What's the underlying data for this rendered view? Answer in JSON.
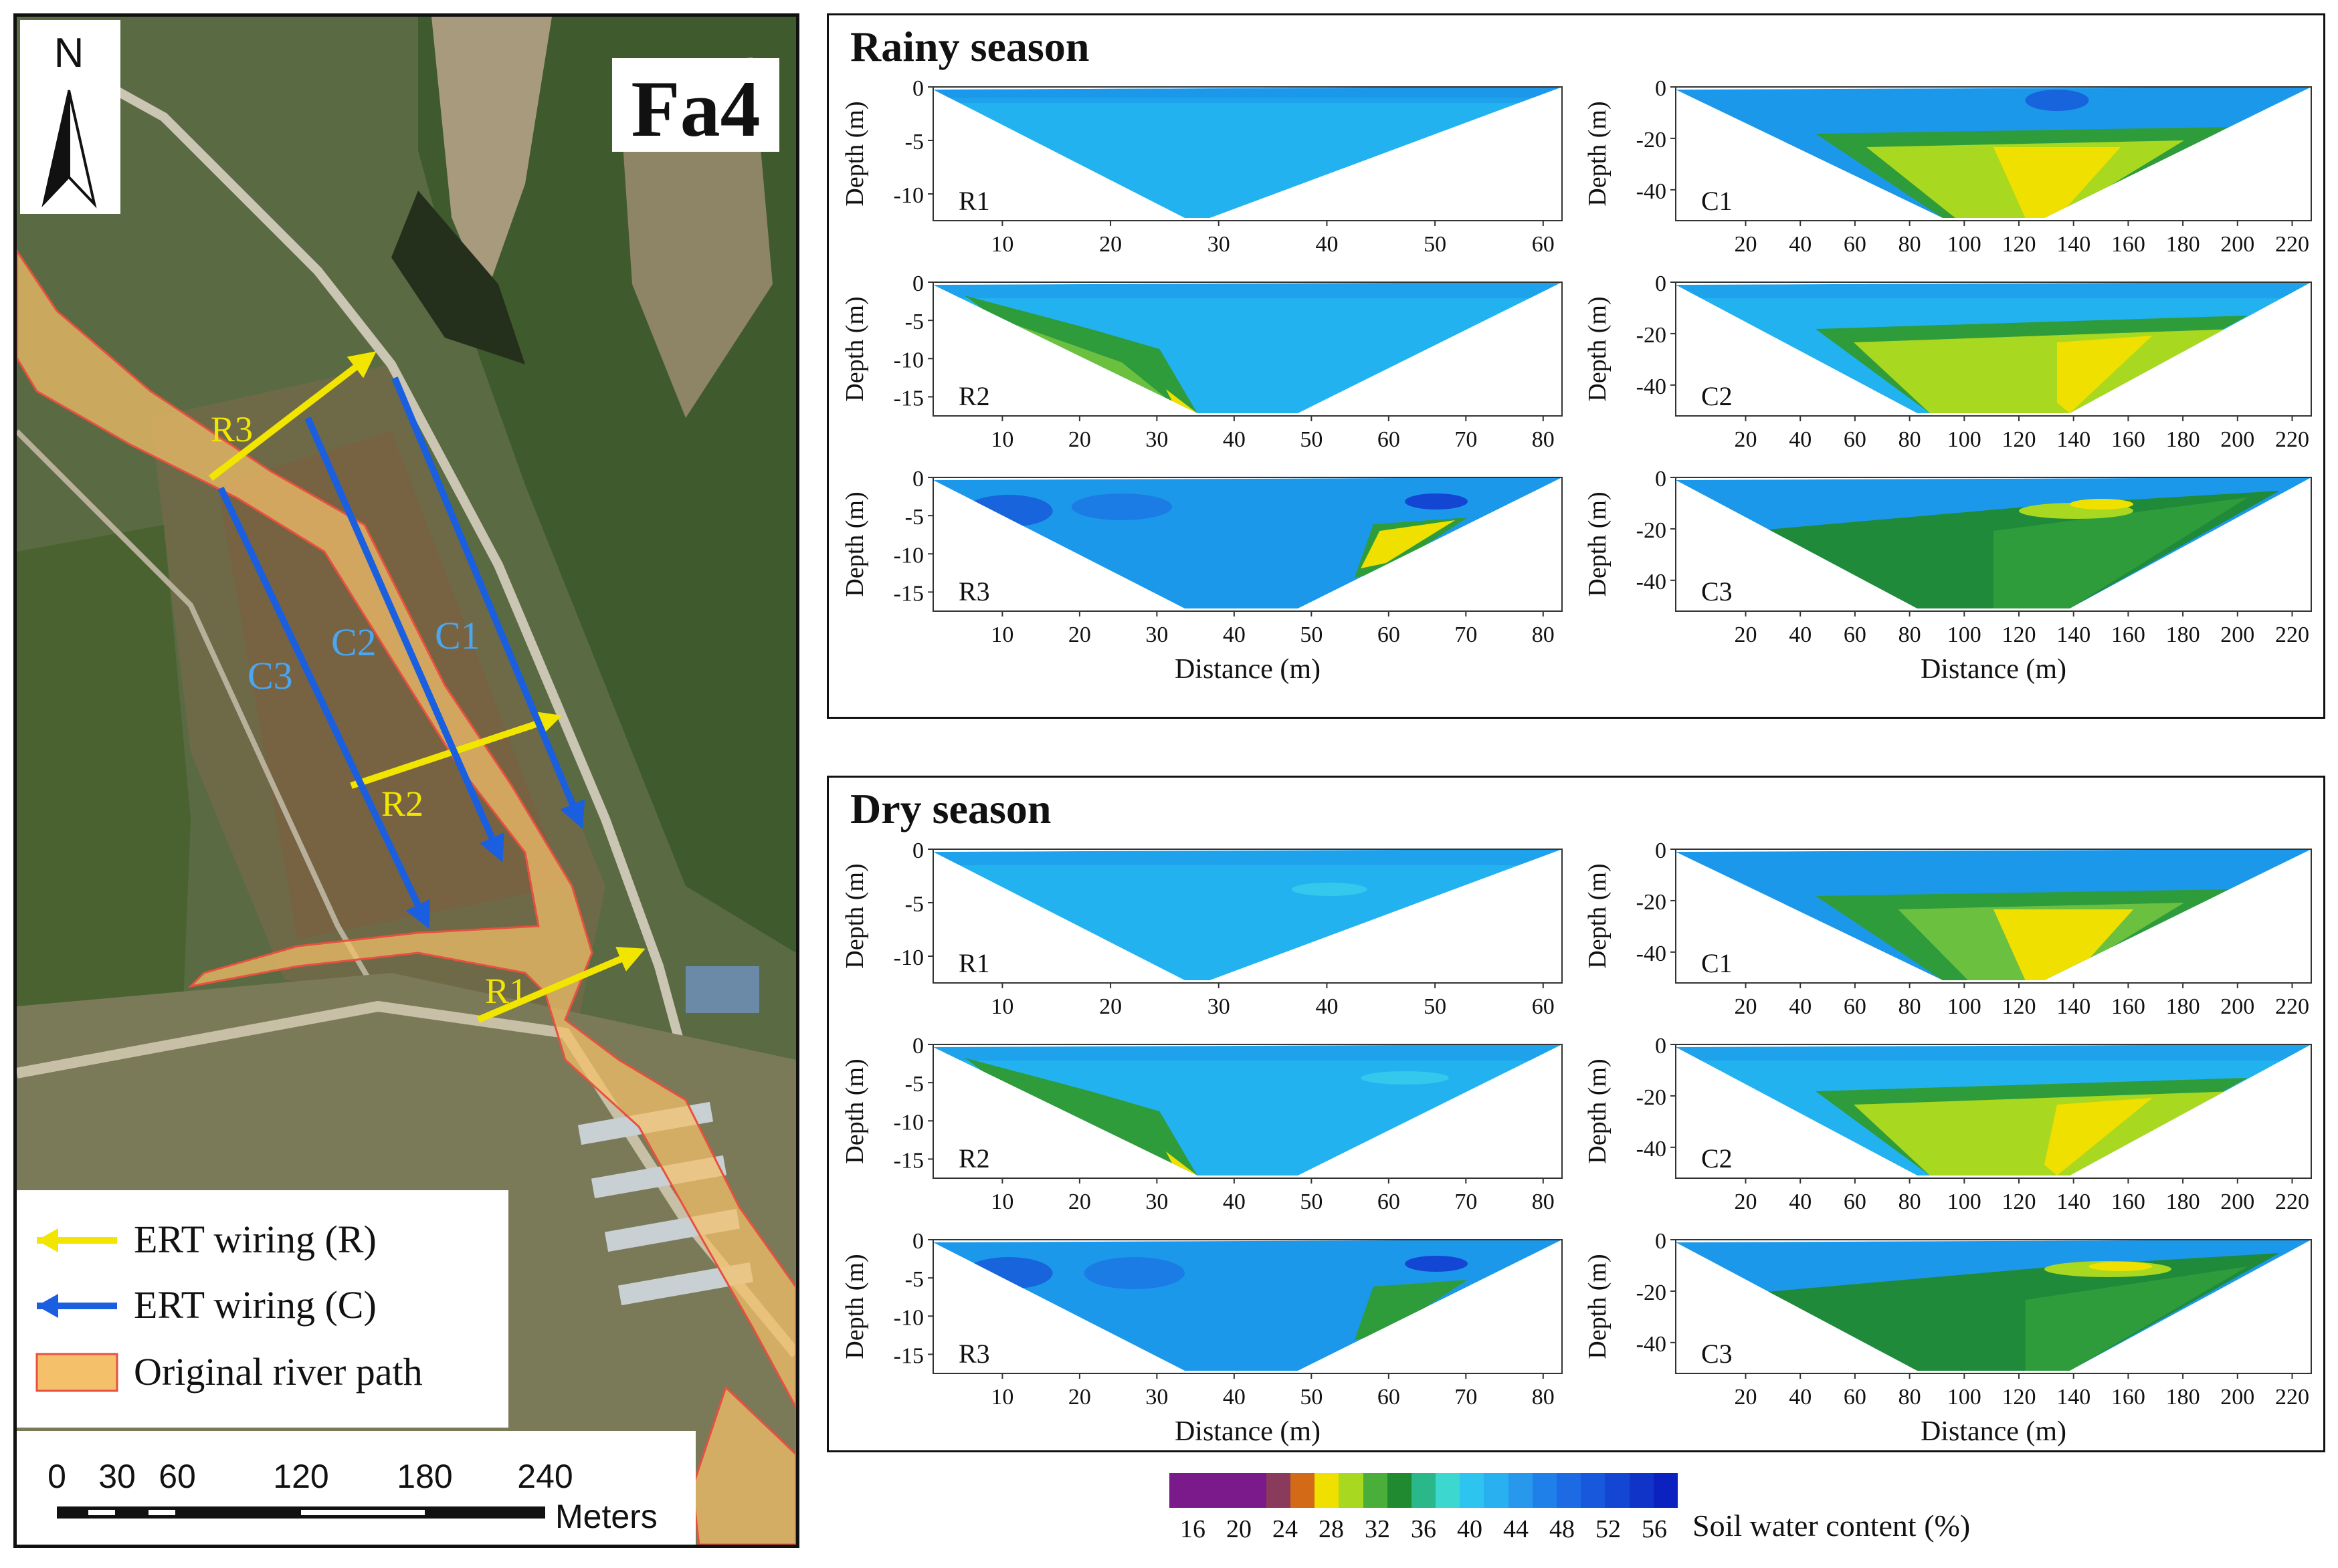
{
  "map": {
    "site_label": "Fa4",
    "north_label": "N",
    "lines": [
      {
        "label": "R1",
        "type": "R"
      },
      {
        "label": "R2",
        "type": "R"
      },
      {
        "label": "R3",
        "type": "R"
      },
      {
        "label": "C1",
        "type": "C"
      },
      {
        "label": "C2",
        "type": "C"
      },
      {
        "label": "C3",
        "type": "C"
      }
    ],
    "legend": {
      "ert_r": "ERT wiring (R)",
      "ert_c": "ERT wiring (C)",
      "river": "Original river path"
    },
    "scale": {
      "ticks": [
        "0",
        "30",
        "60",
        "120",
        "180",
        "240"
      ],
      "unit": "Meters"
    },
    "colors": {
      "r_line": "#f2e600",
      "c_line": "#1a5fe0",
      "c_label": "#4aa6f0",
      "river": "#f5c06a"
    }
  },
  "seasons": [
    {
      "title": "Rainy season"
    },
    {
      "title": "Dry season"
    }
  ],
  "profiles": {
    "R1": {
      "label": "R1",
      "x_ticks": [
        "10",
        "20",
        "30",
        "40",
        "50",
        "60"
      ],
      "y_ticks": [
        "0",
        "-5",
        "-10"
      ]
    },
    "R2": {
      "label": "R2",
      "x_ticks": [
        "10",
        "20",
        "30",
        "40",
        "50",
        "60",
        "70",
        "80"
      ],
      "y_ticks": [
        "0",
        "-5",
        "-10",
        "-15"
      ]
    },
    "R3": {
      "label": "R3",
      "x_ticks": [
        "10",
        "20",
        "30",
        "40",
        "50",
        "60",
        "70",
        "80"
      ],
      "y_ticks": [
        "0",
        "-5",
        "-10",
        "-15"
      ]
    },
    "C1": {
      "label": "C1",
      "x_ticks": [
        "20",
        "40",
        "60",
        "80",
        "100",
        "120",
        "140",
        "160",
        "180",
        "200",
        "220"
      ],
      "y_ticks": [
        "0",
        "-20",
        "-40"
      ]
    },
    "C2": {
      "label": "C2",
      "x_ticks": [
        "20",
        "40",
        "60",
        "80",
        "100",
        "120",
        "140",
        "160",
        "180",
        "200",
        "220"
      ],
      "y_ticks": [
        "0",
        "-20",
        "-40"
      ]
    },
    "C3": {
      "label": "C3",
      "x_ticks": [
        "20",
        "40",
        "60",
        "80",
        "100",
        "120",
        "140",
        "160",
        "180",
        "200",
        "220"
      ],
      "y_ticks": [
        "0",
        "-20",
        "-40"
      ]
    }
  },
  "axes": {
    "x_label": "Distance (m)",
    "y_label": "Depth (m)"
  },
  "colorbar": {
    "label": "Soil water content (%)",
    "ticks": [
      "16",
      "20",
      "24",
      "28",
      "32",
      "36",
      "40",
      "44",
      "48",
      "52",
      "56"
    ],
    "colors": [
      "#7b1a8a",
      "#7b1a8a",
      "#7b1a8a",
      "#7b1a8a",
      "#8a3a5a",
      "#d26a18",
      "#f0e000",
      "#a8d820",
      "#4aae3a",
      "#1f8a30",
      "#2ab88a",
      "#3cd8d0",
      "#2ec4f0",
      "#28b0f0",
      "#2898ec",
      "#2080ea",
      "#1c6ae4",
      "#1858dc",
      "#1446d4",
      "#1034c8",
      "#0c22c0"
    ],
    "regions": {
      "c1": "#7b1a8a",
      "c2": "#8a3a5a",
      "c3": "#d26a18",
      "c4": "#f0e000",
      "c5": "#c4e030",
      "c6": "#a8d820",
      "c7": "#6cc040",
      "c8": "#2e9c3a",
      "c9": "#1f8a3a",
      "c10": "#2ab88a",
      "c11": "#3cd8d0",
      "c12": "#34c8ec",
      "c13": "#22b2f0",
      "c14": "#1c98ea",
      "c15": "#1a7ce4",
      "c16": "#1864dc",
      "c17": "#1446d4"
    }
  }
}
